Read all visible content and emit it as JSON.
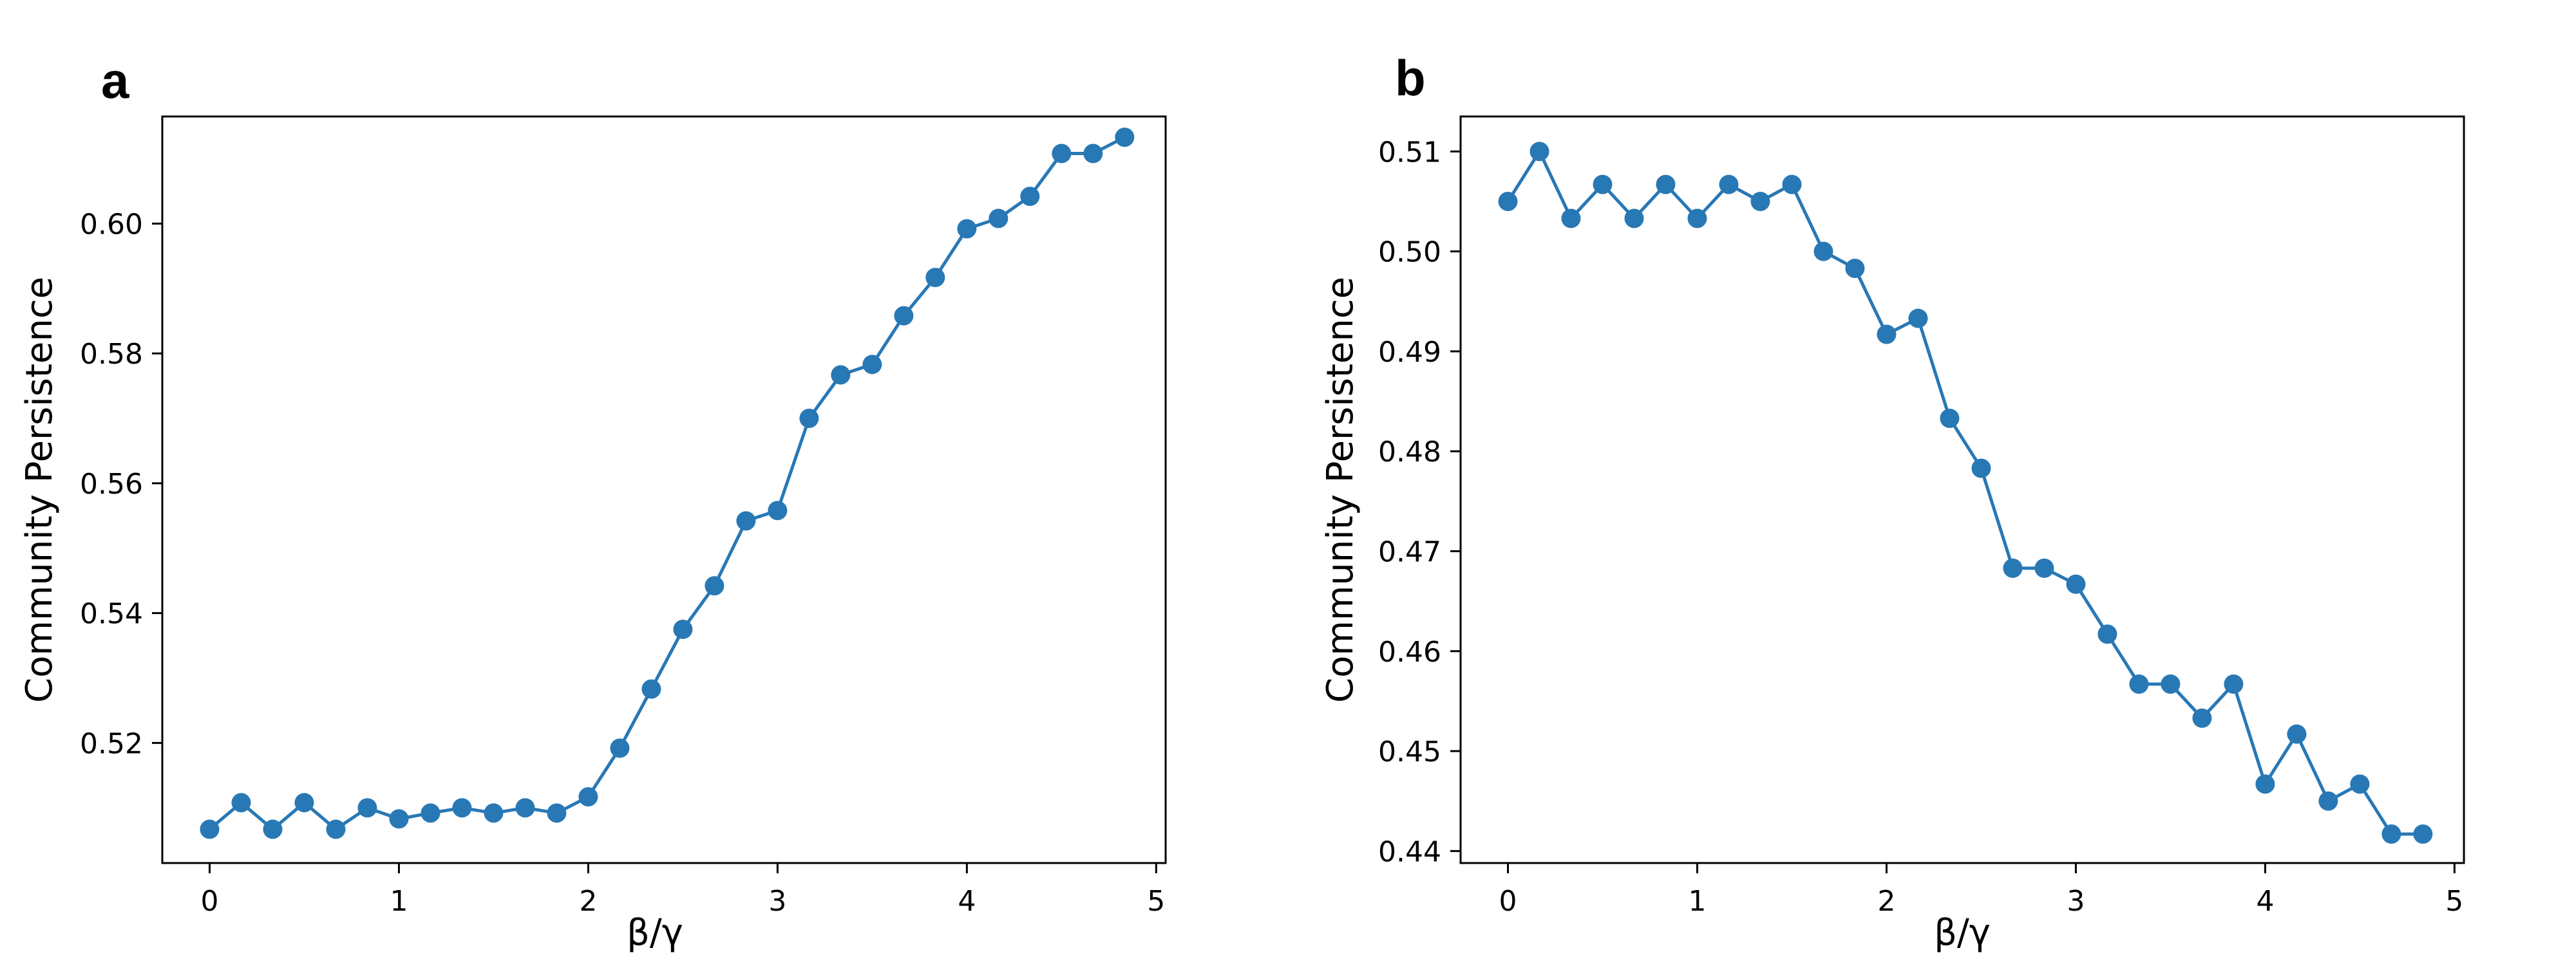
{
  "chart_data": [
    {
      "type": "line",
      "panel_label": "a",
      "title": "",
      "xlabel": "β/γ",
      "ylabel": "Community  Persistence",
      "xlim": [
        -0.25,
        5.05
      ],
      "ylim": [
        0.5015,
        0.6165
      ],
      "xticks": [
        0,
        1,
        2,
        3,
        4,
        5
      ],
      "xtick_labels": [
        "0",
        "1",
        "2",
        "3",
        "4",
        "5"
      ],
      "yticks": [
        0.52,
        0.54,
        0.56,
        0.58,
        0.6
      ],
      "ytick_labels": [
        "0.52",
        "0.54",
        "0.56",
        "0.58",
        "0.60"
      ],
      "grid": false,
      "color": "#2878b5",
      "series": [
        {
          "x": [
            0,
            0.1667,
            0.3333,
            0.5,
            0.6667,
            0.8333,
            1.0,
            1.1667,
            1.3333,
            1.5,
            1.6667,
            1.8333,
            2.0,
            2.1667,
            2.3333,
            2.5,
            2.6667,
            2.8333,
            3.0,
            3.1667,
            3.3333,
            3.5,
            3.6667,
            3.8333,
            4.0,
            4.1667,
            4.3333,
            4.5,
            4.6667,
            4.8333
          ],
          "values": [
            0.5067,
            0.5108,
            0.5067,
            0.5108,
            0.5067,
            0.51,
            0.5083,
            0.5092,
            0.51,
            0.5092,
            0.51,
            0.5092,
            0.5117,
            0.5192,
            0.5283,
            0.5375,
            0.5442,
            0.5542,
            0.5558,
            0.57,
            0.5767,
            0.5783,
            0.5858,
            0.5917,
            0.5992,
            0.6008,
            0.6042,
            0.6108,
            0.6108,
            0.6133
          ]
        }
      ]
    },
    {
      "type": "line",
      "panel_label": "b",
      "title": "",
      "xlabel": "β/γ",
      "ylabel": "Community  Persistence",
      "xlim": [
        -0.25,
        5.05
      ],
      "ylim": [
        0.4388,
        0.5135
      ],
      "xticks": [
        0,
        1,
        2,
        3,
        4,
        5
      ],
      "xtick_labels": [
        "0",
        "1",
        "2",
        "3",
        "4",
        "5"
      ],
      "yticks": [
        0.44,
        0.45,
        0.46,
        0.47,
        0.48,
        0.49,
        0.5,
        0.51
      ],
      "ytick_labels": [
        "0.44",
        "0.45",
        "0.46",
        "0.47",
        "0.48",
        "0.49",
        "0.50",
        "0.51"
      ],
      "grid": false,
      "color": "#2878b5",
      "series": [
        {
          "x": [
            0,
            0.1667,
            0.3333,
            0.5,
            0.6667,
            0.8333,
            1.0,
            1.1667,
            1.3333,
            1.5,
            1.6667,
            1.8333,
            2.0,
            2.1667,
            2.3333,
            2.5,
            2.6667,
            2.8333,
            3.0,
            3.1667,
            3.3333,
            3.5,
            3.6667,
            3.8333,
            4.0,
            4.1667,
            4.3333,
            4.5,
            4.6667,
            4.8333
          ],
          "values": [
            0.505,
            0.51,
            0.5033,
            0.5067,
            0.5033,
            0.5067,
            0.5033,
            0.5067,
            0.505,
            0.5067,
            0.5,
            0.4983,
            0.4917,
            0.4933,
            0.4833,
            0.4783,
            0.4683,
            0.4683,
            0.4667,
            0.4617,
            0.4567,
            0.4567,
            0.4533,
            0.4567,
            0.4467,
            0.4517,
            0.445,
            0.4467,
            0.4417,
            0.4417
          ]
        }
      ]
    }
  ]
}
